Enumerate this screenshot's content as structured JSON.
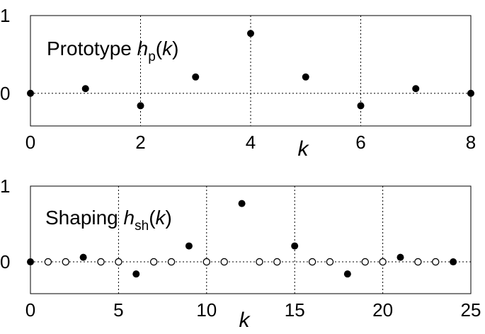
{
  "chart_data": [
    {
      "type": "scatter",
      "title_main": "Prototype ",
      "title_sym": "h",
      "title_sub": "p",
      "title_arg": "(k)",
      "xlabel": "k",
      "xlim": [
        0,
        8
      ],
      "ylim": [
        -0.42,
        1.0
      ],
      "xticks": [
        0,
        2,
        4,
        6,
        8
      ],
      "yticks": [
        0,
        1
      ],
      "vgrid": [
        2,
        4,
        6
      ],
      "hgrid": [
        0
      ],
      "series": [
        {
          "marker": "filled",
          "x": [
            0,
            1,
            2,
            3,
            4,
            5,
            6,
            7,
            8
          ],
          "y": [
            0,
            0.06,
            -0.16,
            0.21,
            0.77,
            0.21,
            -0.16,
            0.06,
            0
          ]
        }
      ]
    },
    {
      "type": "scatter",
      "title_main": "Shaping ",
      "title_sym": "h",
      "title_sub": "sh",
      "title_arg": "(k)",
      "xlabel": "k",
      "xlim": [
        0,
        25
      ],
      "ylim": [
        -0.42,
        1.0
      ],
      "xticks": [
        0,
        5,
        10,
        15,
        20,
        25
      ],
      "yticks": [
        0,
        1
      ],
      "vgrid": [
        5,
        10,
        15,
        20
      ],
      "hgrid": [
        0
      ],
      "series": [
        {
          "marker": "filled",
          "x": [
            0,
            3,
            6,
            9,
            12,
            15,
            18,
            21,
            24
          ],
          "y": [
            0,
            0.06,
            -0.16,
            0.21,
            0.77,
            0.21,
            -0.16,
            0.06,
            0
          ]
        },
        {
          "marker": "open",
          "x": [
            1,
            2,
            4,
            5,
            7,
            8,
            10,
            11,
            13,
            14,
            16,
            17,
            19,
            20,
            22,
            23
          ],
          "y": [
            0,
            0,
            0,
            0,
            0,
            0,
            0,
            0,
            0,
            0,
            0,
            0,
            0,
            0,
            0,
            0
          ]
        }
      ]
    }
  ]
}
